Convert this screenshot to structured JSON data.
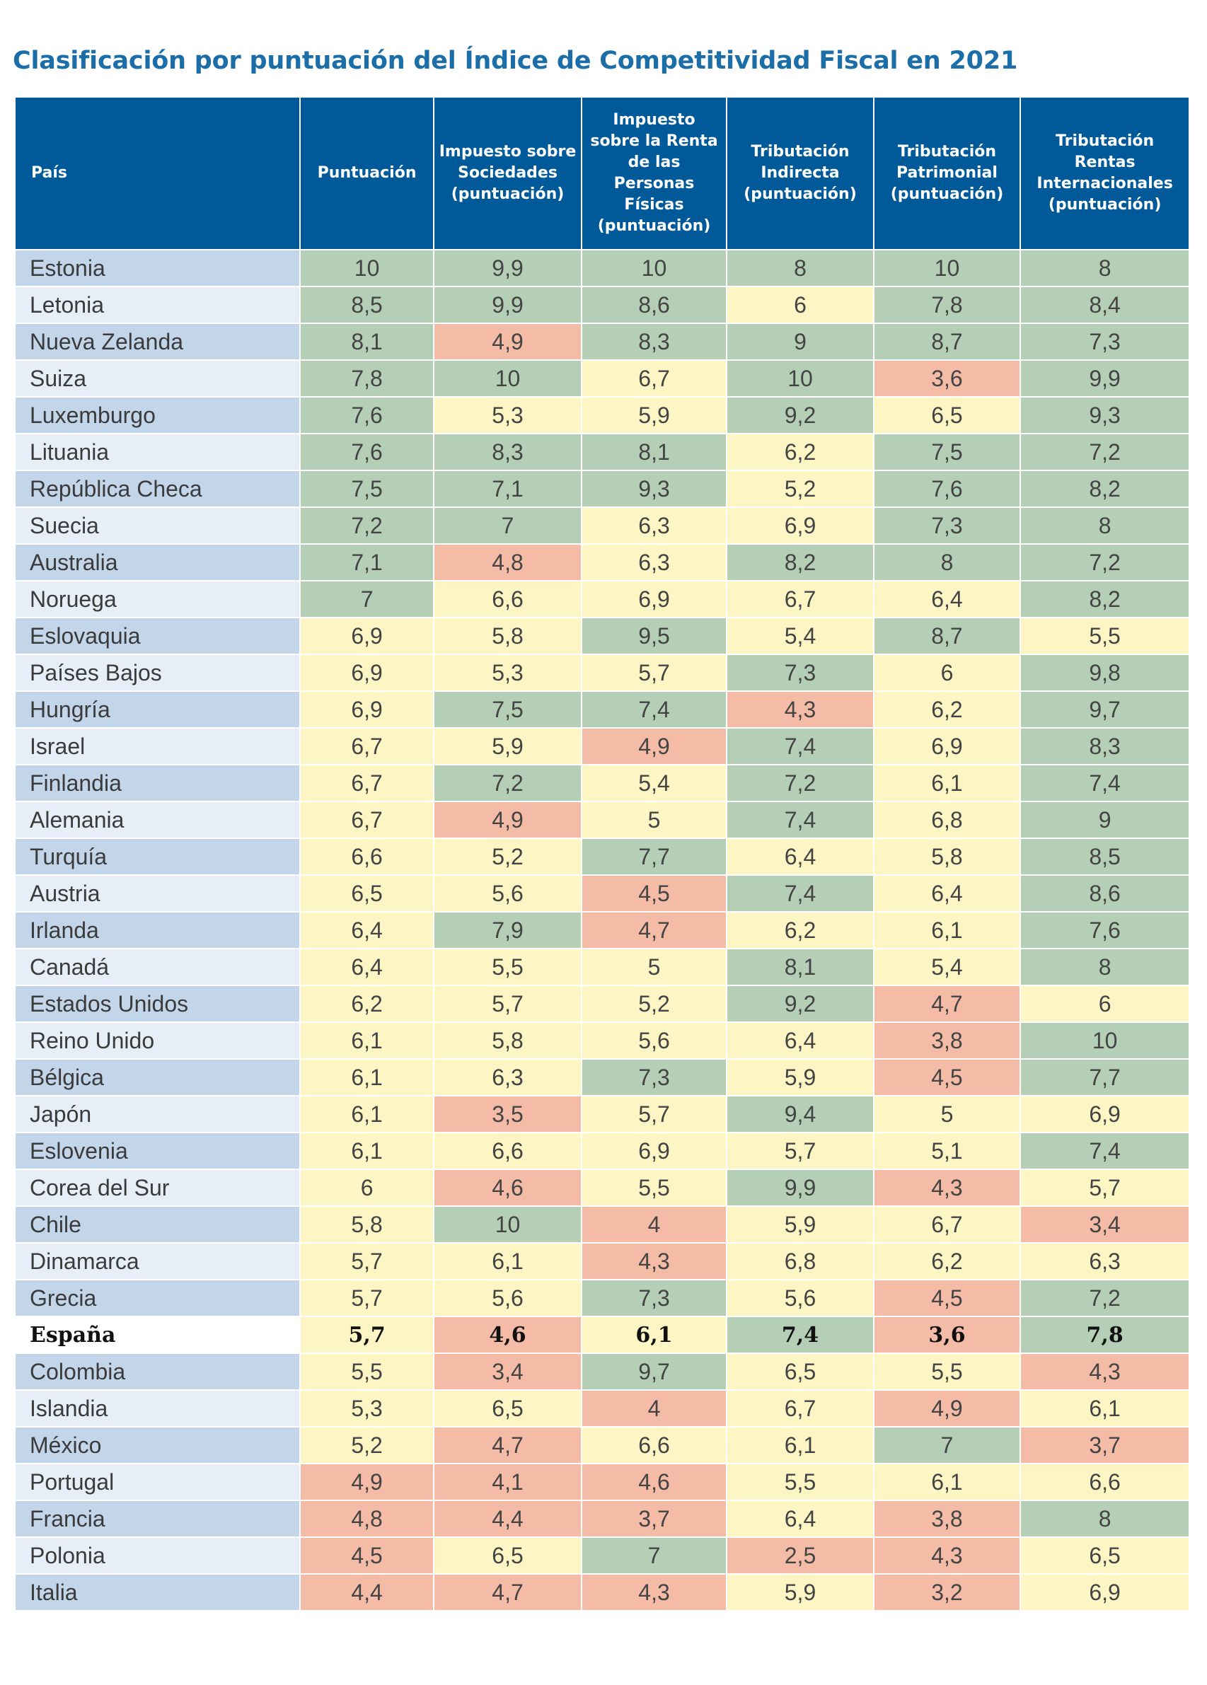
{
  "title": "Clasificación por puntuación del Índice de Competitividad Fiscal en 2021",
  "colors": {
    "header": "#005a9a",
    "green": "#b4cfb6",
    "yellow": "#fdf6c4",
    "red": "#f4bba6",
    "title": "#1b6ea8"
  },
  "chart_data": {
    "type": "table",
    "columns": [
      "País",
      "Puntuación",
      "Impuesto sobre Sociedades (puntuación)",
      "Impuesto sobre la Renta de las Personas Físicas (puntuación)",
      "Tributación Indirecta (puntuación)",
      "Tributación Patrimonial (puntuación)",
      "Tributación Rentas Internacionales (puntuación)"
    ],
    "rows": [
      {
        "country": "Estonia",
        "values": [
          "10",
          "9,9",
          "10",
          "8",
          "10",
          "8"
        ],
        "colors": [
          "g",
          "g",
          "g",
          "g",
          "g",
          "g"
        ]
      },
      {
        "country": "Letonia",
        "values": [
          "8,5",
          "9,9",
          "8,6",
          "6",
          "7,8",
          "8,4"
        ],
        "colors": [
          "g",
          "g",
          "g",
          "y",
          "g",
          "g"
        ]
      },
      {
        "country": "Nueva Zelanda",
        "values": [
          "8,1",
          "4,9",
          "8,3",
          "9",
          "8,7",
          "7,3"
        ],
        "colors": [
          "g",
          "r",
          "g",
          "g",
          "g",
          "g"
        ]
      },
      {
        "country": "Suiza",
        "values": [
          "7,8",
          "10",
          "6,7",
          "10",
          "3,6",
          "9,9"
        ],
        "colors": [
          "g",
          "g",
          "y",
          "g",
          "r",
          "g"
        ]
      },
      {
        "country": "Luxemburgo",
        "values": [
          "7,6",
          "5,3",
          "5,9",
          "9,2",
          "6,5",
          "9,3"
        ],
        "colors": [
          "g",
          "y",
          "y",
          "g",
          "y",
          "g"
        ]
      },
      {
        "country": "Lituania",
        "values": [
          "7,6",
          "8,3",
          "8,1",
          "6,2",
          "7,5",
          "7,2"
        ],
        "colors": [
          "g",
          "g",
          "g",
          "y",
          "g",
          "g"
        ]
      },
      {
        "country": "República Checa",
        "values": [
          "7,5",
          "7,1",
          "9,3",
          "5,2",
          "7,6",
          "8,2"
        ],
        "colors": [
          "g",
          "g",
          "g",
          "y",
          "g",
          "g"
        ]
      },
      {
        "country": "Suecia",
        "values": [
          "7,2",
          "7",
          "6,3",
          "6,9",
          "7,3",
          "8"
        ],
        "colors": [
          "g",
          "g",
          "y",
          "y",
          "g",
          "g"
        ]
      },
      {
        "country": "Australia",
        "values": [
          "7,1",
          "4,8",
          "6,3",
          "8,2",
          "8",
          "7,2"
        ],
        "colors": [
          "g",
          "r",
          "y",
          "g",
          "g",
          "g"
        ]
      },
      {
        "country": "Noruega",
        "values": [
          "7",
          "6,6",
          "6,9",
          "6,7",
          "6,4",
          "8,2"
        ],
        "colors": [
          "g",
          "y",
          "y",
          "y",
          "y",
          "g"
        ]
      },
      {
        "country": "Eslovaquia",
        "values": [
          "6,9",
          "5,8",
          "9,5",
          "5,4",
          "8,7",
          "5,5"
        ],
        "colors": [
          "y",
          "y",
          "g",
          "y",
          "g",
          "y"
        ]
      },
      {
        "country": "Países Bajos",
        "values": [
          "6,9",
          "5,3",
          "5,7",
          "7,3",
          "6",
          "9,8"
        ],
        "colors": [
          "y",
          "y",
          "y",
          "g",
          "y",
          "g"
        ]
      },
      {
        "country": "Hungría",
        "values": [
          "6,9",
          "7,5",
          "7,4",
          "4,3",
          "6,2",
          "9,7"
        ],
        "colors": [
          "y",
          "g",
          "g",
          "r",
          "y",
          "g"
        ]
      },
      {
        "country": "Israel",
        "values": [
          "6,7",
          "5,9",
          "4,9",
          "7,4",
          "6,9",
          "8,3"
        ],
        "colors": [
          "y",
          "y",
          "r",
          "g",
          "y",
          "g"
        ]
      },
      {
        "country": "Finlandia",
        "values": [
          "6,7",
          "7,2",
          "5,4",
          "7,2",
          "6,1",
          "7,4"
        ],
        "colors": [
          "y",
          "g",
          "y",
          "g",
          "y",
          "g"
        ]
      },
      {
        "country": "Alemania",
        "values": [
          "6,7",
          "4,9",
          "5",
          "7,4",
          "6,8",
          "9"
        ],
        "colors": [
          "y",
          "r",
          "y",
          "g",
          "y",
          "g"
        ]
      },
      {
        "country": "Turquía",
        "values": [
          "6,6",
          "5,2",
          "7,7",
          "6,4",
          "5,8",
          "8,5"
        ],
        "colors": [
          "y",
          "y",
          "g",
          "y",
          "y",
          "g"
        ]
      },
      {
        "country": "Austria",
        "values": [
          "6,5",
          "5,6",
          "4,5",
          "7,4",
          "6,4",
          "8,6"
        ],
        "colors": [
          "y",
          "y",
          "r",
          "g",
          "y",
          "g"
        ]
      },
      {
        "country": "Irlanda",
        "values": [
          "6,4",
          "7,9",
          "4,7",
          "6,2",
          "6,1",
          "7,6"
        ],
        "colors": [
          "y",
          "g",
          "r",
          "y",
          "y",
          "g"
        ]
      },
      {
        "country": "Canadá",
        "values": [
          "6,4",
          "5,5",
          "5",
          "8,1",
          "5,4",
          "8"
        ],
        "colors": [
          "y",
          "y",
          "y",
          "g",
          "y",
          "g"
        ]
      },
      {
        "country": "Estados Unidos",
        "values": [
          "6,2",
          "5,7",
          "5,2",
          "9,2",
          "4,7",
          "6"
        ],
        "colors": [
          "y",
          "y",
          "y",
          "g",
          "r",
          "y"
        ]
      },
      {
        "country": "Reino Unido",
        "values": [
          "6,1",
          "5,8",
          "5,6",
          "6,4",
          "3,8",
          "10"
        ],
        "colors": [
          "y",
          "y",
          "y",
          "y",
          "r",
          "g"
        ]
      },
      {
        "country": "Bélgica",
        "values": [
          "6,1",
          "6,3",
          "7,3",
          "5,9",
          "4,5",
          "7,7"
        ],
        "colors": [
          "y",
          "y",
          "g",
          "y",
          "r",
          "g"
        ]
      },
      {
        "country": "Japón",
        "values": [
          "6,1",
          "3,5",
          "5,7",
          "9,4",
          "5",
          "6,9"
        ],
        "colors": [
          "y",
          "r",
          "y",
          "g",
          "y",
          "y"
        ]
      },
      {
        "country": "Eslovenia",
        "values": [
          "6,1",
          "6,6",
          "6,9",
          "5,7",
          "5,1",
          "7,4"
        ],
        "colors": [
          "y",
          "y",
          "y",
          "y",
          "y",
          "g"
        ]
      },
      {
        "country": "Corea del Sur",
        "values": [
          "6",
          "4,6",
          "5,5",
          "9,9",
          "4,3",
          "5,7"
        ],
        "colors": [
          "y",
          "r",
          "y",
          "g",
          "r",
          "y"
        ]
      },
      {
        "country": "Chile",
        "values": [
          "5,8",
          "10",
          "4",
          "5,9",
          "6,7",
          "3,4"
        ],
        "colors": [
          "y",
          "g",
          "r",
          "y",
          "y",
          "r"
        ]
      },
      {
        "country": "Dinamarca",
        "values": [
          "5,7",
          "6,1",
          "4,3",
          "6,8",
          "6,2",
          "6,3"
        ],
        "colors": [
          "y",
          "y",
          "r",
          "y",
          "y",
          "y"
        ]
      },
      {
        "country": "Grecia",
        "values": [
          "5,7",
          "5,6",
          "7,3",
          "5,6",
          "4,5",
          "7,2"
        ],
        "colors": [
          "y",
          "y",
          "g",
          "y",
          "r",
          "g"
        ]
      },
      {
        "country": "España",
        "values": [
          "5,7",
          "4,6",
          "6,1",
          "7,4",
          "3,6",
          "7,8"
        ],
        "colors": [
          "y",
          "r",
          "y",
          "g",
          "r",
          "g"
        ],
        "bold": true
      },
      {
        "country": "Colombia",
        "values": [
          "5,5",
          "3,4",
          "9,7",
          "6,5",
          "5,5",
          "4,3"
        ],
        "colors": [
          "y",
          "r",
          "g",
          "y",
          "y",
          "r"
        ]
      },
      {
        "country": "Islandia",
        "values": [
          "5,3",
          "6,5",
          "4",
          "6,7",
          "4,9",
          "6,1"
        ],
        "colors": [
          "y",
          "y",
          "r",
          "y",
          "r",
          "y"
        ]
      },
      {
        "country": "México",
        "values": [
          "5,2",
          "4,7",
          "6,6",
          "6,1",
          "7",
          "3,7"
        ],
        "colors": [
          "y",
          "r",
          "y",
          "y",
          "g",
          "r"
        ]
      },
      {
        "country": "Portugal",
        "values": [
          "4,9",
          "4,1",
          "4,6",
          "5,5",
          "6,1",
          "6,6"
        ],
        "colors": [
          "r",
          "r",
          "r",
          "y",
          "y",
          "y"
        ]
      },
      {
        "country": "Francia",
        "values": [
          "4,8",
          "4,4",
          "3,7",
          "6,4",
          "3,8",
          "8"
        ],
        "colors": [
          "r",
          "r",
          "r",
          "y",
          "r",
          "g"
        ]
      },
      {
        "country": "Polonia",
        "values": [
          "4,5",
          "6,5",
          "7",
          "2,5",
          "4,3",
          "6,5"
        ],
        "colors": [
          "r",
          "y",
          "g",
          "r",
          "r",
          "y"
        ]
      },
      {
        "country": "Italia",
        "values": [
          "4,4",
          "4,7",
          "4,3",
          "5,9",
          "3,2",
          "6,9"
        ],
        "colors": [
          "r",
          "r",
          "r",
          "y",
          "r",
          "y"
        ]
      }
    ]
  }
}
